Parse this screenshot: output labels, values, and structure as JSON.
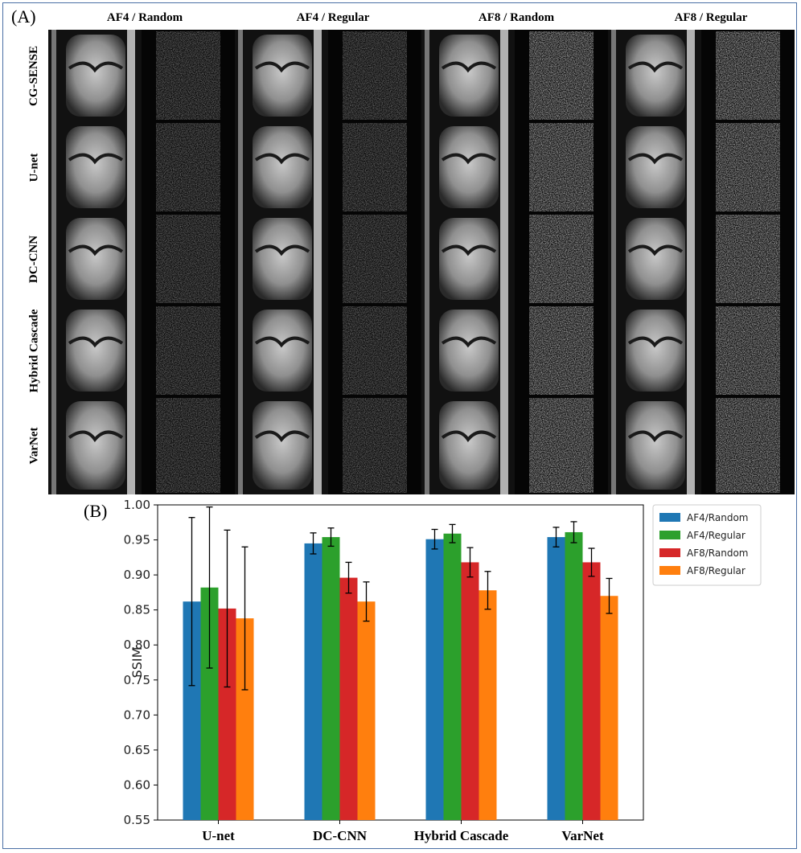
{
  "panel_a": {
    "label": "(A)",
    "columns": [
      "AF4 / Random",
      "AF4 / Regular",
      "AF8 / Random",
      "AF8 / Regular"
    ],
    "rows": [
      "CG-SENSE",
      "U-net",
      "DC-CNN",
      "Hybrid Cascade",
      "VarNet"
    ]
  },
  "panel_b": {
    "label": "(B)"
  },
  "chart_data": {
    "type": "bar",
    "categories": [
      "U-net",
      "DC-CNN",
      "Hybrid Cascade",
      "VarNet"
    ],
    "ylabel": "SSIM",
    "ylim": [
      0.55,
      1.0
    ],
    "yticks": [
      "0.55",
      "0.60",
      "0.65",
      "0.70",
      "0.75",
      "0.80",
      "0.85",
      "0.90",
      "0.95",
      "1.00"
    ],
    "legend_position": "outside-right-top",
    "series": [
      {
        "name": "AF4/Random",
        "color": "#1f77b4",
        "values": [
          0.862,
          0.945,
          0.951,
          0.954
        ],
        "errors": [
          0.12,
          0.015,
          0.014,
          0.014
        ]
      },
      {
        "name": "AF4/Regular",
        "color": "#2ca02c",
        "values": [
          0.882,
          0.954,
          0.959,
          0.961
        ],
        "errors": [
          0.115,
          0.013,
          0.013,
          0.015
        ]
      },
      {
        "name": "AF8/Random",
        "color": "#d62728",
        "values": [
          0.852,
          0.896,
          0.918,
          0.918
        ],
        "errors": [
          0.112,
          0.022,
          0.021,
          0.02
        ]
      },
      {
        "name": "AF8/Regular",
        "color": "#ff7f0e",
        "values": [
          0.838,
          0.862,
          0.878,
          0.87
        ],
        "errors": [
          0.102,
          0.028,
          0.027,
          0.025
        ]
      }
    ]
  }
}
